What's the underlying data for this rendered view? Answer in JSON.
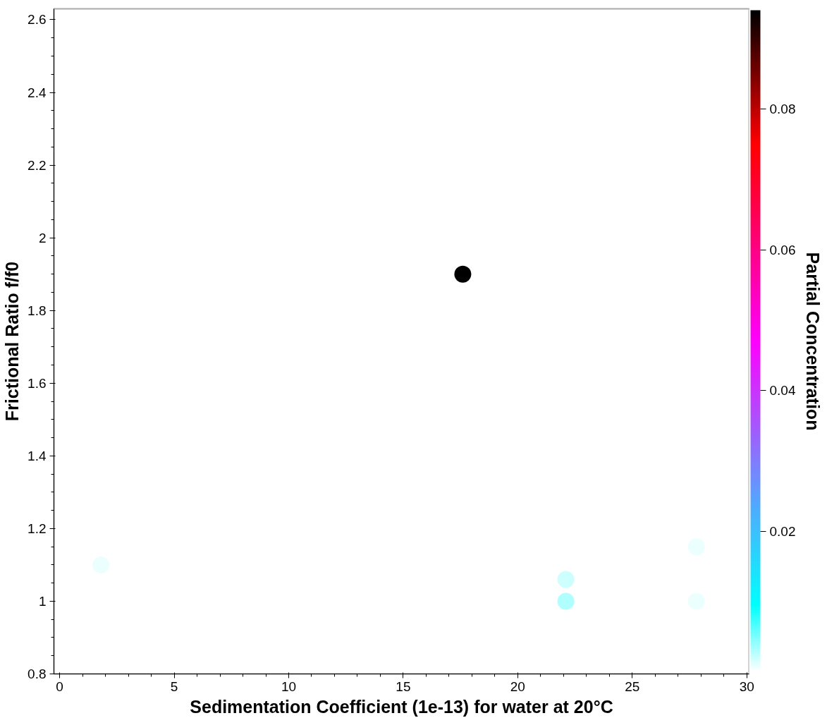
{
  "chart_data": {
    "type": "scatter",
    "xlabel": "Sedimentation Coefficient (1e-13) for water at 20°C",
    "ylabel": "Frictional Ratio f/f0",
    "clabel": "Partial Concentration",
    "x": [
      17.6,
      22.1,
      22.1,
      27.8,
      27.8,
      1.8
    ],
    "values": [
      1.9,
      1.0,
      1.06,
      1.0,
      1.15,
      1.1
    ],
    "cvalues": [
      0.094,
      0.003,
      0.002,
      0.001,
      0.001,
      0.001
    ],
    "xlim": [
      -0.25,
      30.1
    ],
    "ylim": [
      0.8,
      2.63
    ],
    "xticks": [
      0,
      5,
      10,
      15,
      20,
      25,
      30
    ],
    "yticks": [
      0.8,
      {
        "value": 1.0,
        "label": "1"
      },
      1.2,
      1.4,
      1.6,
      1.8,
      {
        "value": 2.0,
        "label": "2"
      },
      2.2,
      2.4,
      2.6
    ],
    "clim": [
      0,
      0.094
    ],
    "cticks": [
      0.02,
      0.04,
      0.06,
      0.08
    ],
    "marker": "circle",
    "grid": false
  }
}
